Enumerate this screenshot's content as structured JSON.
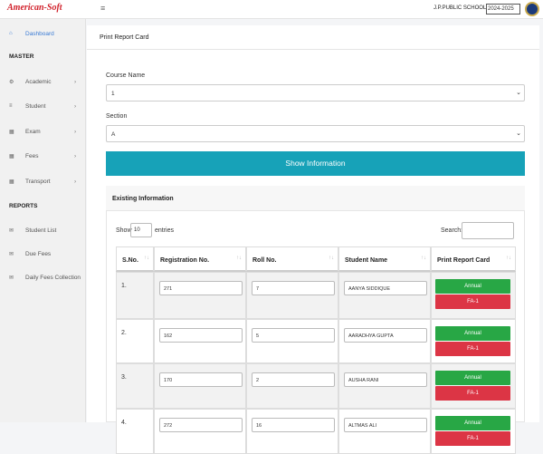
{
  "header": {
    "logo": "American-Soft",
    "school": "J.P.PUBLIC SCHOOL",
    "session": "2024-2025"
  },
  "sidebar": {
    "items": [
      {
        "label": "Dashboard",
        "kind": "link"
      },
      {
        "label": "MASTER",
        "kind": "section"
      },
      {
        "label": "Academic",
        "kind": "menu"
      },
      {
        "label": "Student",
        "kind": "menu"
      },
      {
        "label": "Exam",
        "kind": "menu"
      },
      {
        "label": "Fees",
        "kind": "menu"
      },
      {
        "label": "Transport",
        "kind": "menu"
      },
      {
        "label": "REPORTS",
        "kind": "section"
      },
      {
        "label": "Student List",
        "kind": "link"
      },
      {
        "label": "Due Fees",
        "kind": "link"
      },
      {
        "label": "Daily Fees Collection",
        "kind": "link"
      }
    ]
  },
  "page": {
    "title": "Print Report Card",
    "course_label": "Course Name",
    "course_value": "1",
    "section_label": "Section",
    "section_value": "A",
    "button": "Show Information",
    "card_title": "Existing Information",
    "show": "Show",
    "entries_value": "10",
    "entries": "entries",
    "search": "Search:"
  },
  "table": {
    "columns": [
      "S.No.",
      "Registration No.",
      "Roll No.",
      "Student Name",
      "Print Report Card"
    ],
    "buttons": [
      "Annual",
      "FA-1"
    ],
    "rows": [
      [
        "1.",
        "271",
        "7",
        "AANYA SIDDIQUE"
      ],
      [
        "2.",
        "162",
        "5",
        "AARADHYA GUPTA"
      ],
      [
        "3.",
        "170",
        "2",
        "AUSHA RANI"
      ],
      [
        "4.",
        "272",
        "16",
        "ALTMAS ALI"
      ]
    ]
  }
}
